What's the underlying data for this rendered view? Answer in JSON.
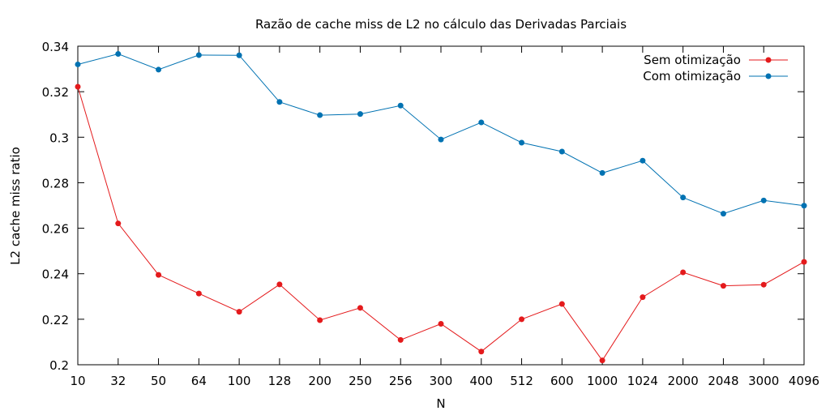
{
  "chart_data": {
    "type": "line",
    "title": "Razão de cache miss de L2 no cálculo das Derivadas Parciais",
    "xlabel": "N",
    "ylabel": "L2 cache miss ratio",
    "categories": [
      "10",
      "32",
      "50",
      "64",
      "100",
      "128",
      "200",
      "250",
      "256",
      "300",
      "400",
      "512",
      "600",
      "1000",
      "1024",
      "2000",
      "2048",
      "3000",
      "4096"
    ],
    "ylim": [
      0.2,
      0.34
    ],
    "yticks": [
      0.2,
      0.22,
      0.24,
      0.26,
      0.28,
      0.3,
      0.32,
      0.34
    ],
    "ytick_labels": [
      "0.2",
      "0.22",
      "0.24",
      "0.26",
      "0.28",
      "0.3",
      "0.32",
      "0.34"
    ],
    "grid": false,
    "legend_position": "top-right",
    "series": [
      {
        "name": "Sem otimização",
        "color": "#e41a1c",
        "values": [
          0.3222,
          0.2621,
          0.2395,
          0.2313,
          0.2233,
          0.2353,
          0.2196,
          0.225,
          0.2109,
          0.218,
          0.2058,
          0.22,
          0.2267,
          0.2019,
          0.2297,
          0.2406,
          0.2347,
          0.2352,
          0.2452
        ]
      },
      {
        "name": "Com otimização",
        "color": "#0072b2",
        "values": [
          0.332,
          0.3366,
          0.3297,
          0.3361,
          0.336,
          0.3155,
          0.3097,
          0.3102,
          0.3139,
          0.299,
          0.3065,
          0.2976,
          0.2937,
          0.2843,
          0.2897,
          0.2735,
          0.2664,
          0.2722,
          0.2699
        ]
      }
    ]
  }
}
